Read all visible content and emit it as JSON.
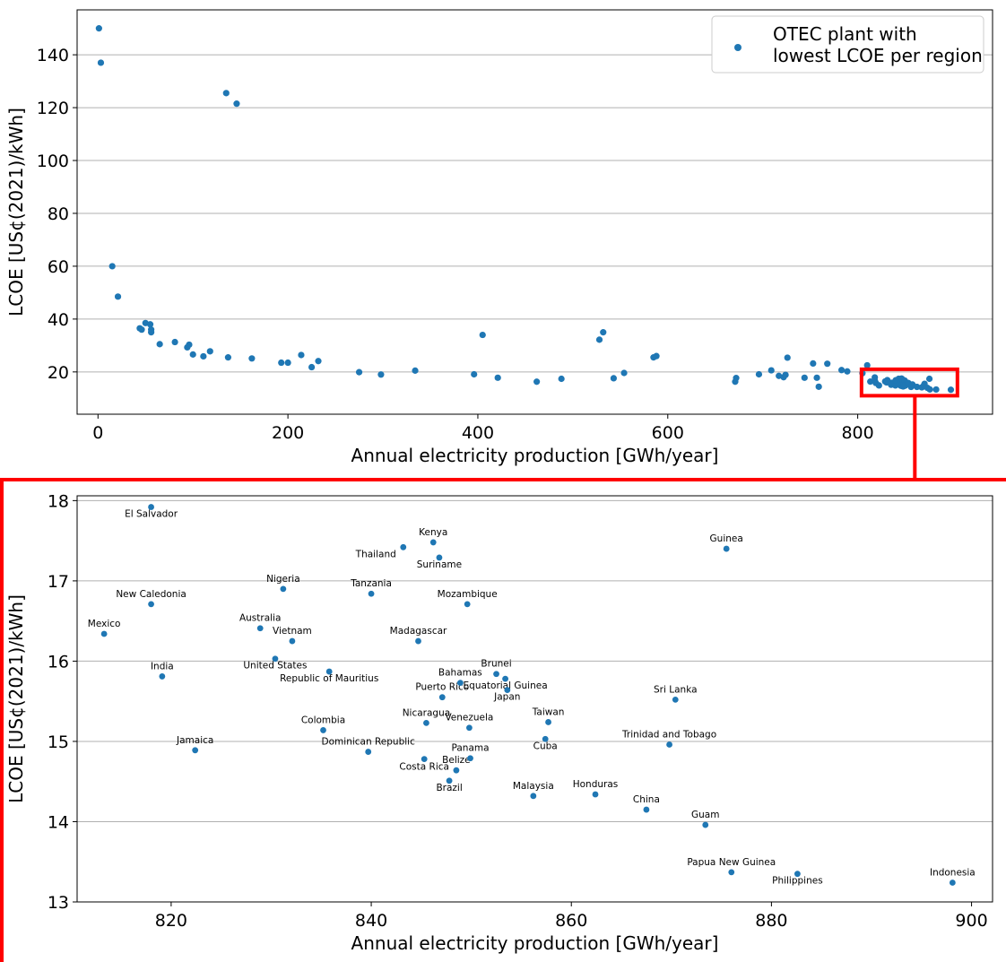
{
  "chart_data": [
    {
      "type": "scatter",
      "xlabel": "Annual electricity production [GWh/year]",
      "ylabel": "LCOE [US¢(2021)/kWh]",
      "xlim": [
        -22,
        942
      ],
      "ylim": [
        4,
        157
      ],
      "xticks": [
        0,
        200,
        400,
        600,
        800
      ],
      "yticks": [
        20,
        40,
        60,
        80,
        100,
        120,
        140
      ],
      "grid": "horizontal",
      "legend": {
        "position": "top-right",
        "label": "OTEC plant with lowest LCOE per region",
        "lines": [
          "OTEC plant with",
          "lowest LCOE per region"
        ]
      },
      "series": [
        {
          "name": "OTEC plant with lowest LCOE per region",
          "color": "#1f77b4",
          "points": [
            [
              1,
              150
            ],
            [
              3,
              137
            ],
            [
              15,
              60
            ],
            [
              21,
              48.5
            ],
            [
              44,
              36.5
            ],
            [
              46,
              36
            ],
            [
              50,
              38.5
            ],
            [
              55,
              38
            ],
            [
              56,
              36
            ],
            [
              56,
              35
            ],
            [
              65,
              30.5
            ],
            [
              81,
              31.3
            ],
            [
              94,
              29.3
            ],
            [
              96,
              30.3
            ],
            [
              100,
              26.6
            ],
            [
              111,
              25.9
            ],
            [
              118,
              27.8
            ],
            [
              135,
              125.5
            ],
            [
              137,
              25.5
            ],
            [
              146,
              121.5
            ],
            [
              162,
              25.1
            ],
            [
              193,
              23.5
            ],
            [
              200,
              23.5
            ],
            [
              214,
              26.4
            ],
            [
              225,
              21.8
            ],
            [
              232,
              24.1
            ],
            [
              275,
              19.9
            ],
            [
              298,
              19
            ],
            [
              334,
              20.5
            ],
            [
              396,
              19.1
            ],
            [
              405,
              34
            ],
            [
              421,
              17.8
            ],
            [
              462,
              16.3
            ],
            [
              488,
              17.4
            ],
            [
              528,
              32.2
            ],
            [
              532,
              35
            ],
            [
              543,
              17.6
            ],
            [
              554,
              19.6
            ],
            [
              585,
              25.5
            ],
            [
              588,
              26
            ],
            [
              671,
              16.3
            ],
            [
              672,
              17.7
            ],
            [
              696,
              19.1
            ],
            [
              709,
              20.6
            ],
            [
              717,
              18.5
            ],
            [
              722,
              18
            ],
            [
              724,
              18.9
            ],
            [
              726,
              25.4
            ],
            [
              744,
              17.8
            ],
            [
              753,
              23.2
            ],
            [
              757,
              17.8
            ],
            [
              759,
              14.4
            ],
            [
              768,
              23.1
            ],
            [
              783,
              20.7
            ],
            [
              789,
              20.2
            ],
            [
              805,
              19.5
            ],
            [
              810,
              22.5
            ],
            [
              813.3,
              16.34
            ],
            [
              818,
              17.92
            ],
            [
              818,
              16.71
            ],
            [
              819.1,
              15.81
            ],
            [
              822.4,
              14.89
            ],
            [
              828.9,
              16.41
            ],
            [
              830.4,
              16.03
            ],
            [
              831.2,
              16.9
            ],
            [
              832.1,
              16.25
            ],
            [
              835.2,
              15.14
            ],
            [
              835.8,
              15.87
            ],
            [
              839.7,
              14.87
            ],
            [
              840,
              16.84
            ],
            [
              843.2,
              17.42
            ],
            [
              844.7,
              16.25
            ],
            [
              845.3,
              14.78
            ],
            [
              845.5,
              15.23
            ],
            [
              846.2,
              17.48
            ],
            [
              846.8,
              17.29
            ],
            [
              847.1,
              15.55
            ],
            [
              847.8,
              14.51
            ],
            [
              848.5,
              14.64
            ],
            [
              848.9,
              15.73
            ],
            [
              849.6,
              16.71
            ],
            [
              849.8,
              15.17
            ],
            [
              849.9,
              14.79
            ],
            [
              852.5,
              15.84
            ],
            [
              853.4,
              15.78
            ],
            [
              853.6,
              15.64
            ],
            [
              856.2,
              14.32
            ],
            [
              857.4,
              15.03
            ],
            [
              857.7,
              15.24
            ],
            [
              862.4,
              14.34
            ],
            [
              867.5,
              14.15
            ],
            [
              869.8,
              14.96
            ],
            [
              870.4,
              15.52
            ],
            [
              873.4,
              13.96
            ],
            [
              875.5,
              17.4
            ],
            [
              876,
              13.37
            ],
            [
              882.6,
              13.35
            ],
            [
              898.1,
              13.24
            ]
          ]
        }
      ],
      "highlight_box": {
        "x": [
          804,
          905
        ],
        "y": [
          11,
          21
        ],
        "color": "#ff0000"
      }
    },
    {
      "type": "scatter",
      "xlabel": "Annual electricity production [GWh/year]",
      "ylabel": "LCOE [US¢(2021)/kWh]",
      "xlim": [
        810.6,
        902.1
      ],
      "ylim": [
        13,
        18.06
      ],
      "xticks": [
        820,
        840,
        860,
        880,
        900
      ],
      "yticks": [
        13,
        14,
        15,
        16,
        17,
        18
      ],
      "grid": "horizontal",
      "series": [
        {
          "color": "#1f77b4",
          "points": [
            {
              "label": "Mexico",
              "x": 813.3,
              "y": 16.34,
              "anchor": "middle",
              "dy": -8
            },
            {
              "label": "El Salvador",
              "x": 818,
              "y": 17.92,
              "anchor": "middle",
              "dy": 11
            },
            {
              "label": "New Caledonia",
              "x": 818,
              "y": 16.71,
              "anchor": "middle",
              "dy": -8
            },
            {
              "label": "India",
              "x": 819.1,
              "y": 15.81,
              "anchor": "middle",
              "dy": -8
            },
            {
              "label": "Jamaica",
              "x": 822.4,
              "y": 14.89,
              "anchor": "middle",
              "dy": -8
            },
            {
              "label": "Australia",
              "x": 828.9,
              "y": 16.41,
              "anchor": "middle",
              "dy": -8
            },
            {
              "label": "United States",
              "x": 830.4,
              "y": 16.03,
              "anchor": "middle",
              "dy": 11
            },
            {
              "label": "Nigeria",
              "x": 831.2,
              "y": 16.9,
              "anchor": "middle",
              "dy": -8
            },
            {
              "label": "Vietnam",
              "x": 832.1,
              "y": 16.25,
              "anchor": "middle",
              "dy": -8
            },
            {
              "label": "Colombia",
              "x": 835.2,
              "y": 15.14,
              "anchor": "middle",
              "dy": -8
            },
            {
              "label": "Republic of Mauritius",
              "x": 835.8,
              "y": 15.87,
              "anchor": "middle",
              "dy": 11
            },
            {
              "label": "Dominican Republic",
              "x": 839.7,
              "y": 14.87,
              "anchor": "middle",
              "dy": -8
            },
            {
              "label": "Tanzania",
              "x": 840,
              "y": 16.84,
              "anchor": "middle",
              "dy": -8
            },
            {
              "label": "Thailand",
              "x": 843.2,
              "y": 17.42,
              "anchor": "end",
              "dy": 11
            },
            {
              "label": "Madagascar",
              "x": 844.7,
              "y": 16.25,
              "anchor": "middle",
              "dy": -8
            },
            {
              "label": "Costa Rica",
              "x": 845.3,
              "y": 14.78,
              "anchor": "middle",
              "dy": 12
            },
            {
              "label": "Nicaragua",
              "x": 845.5,
              "y": 15.23,
              "anchor": "middle",
              "dy": -8
            },
            {
              "label": "Kenya",
              "x": 846.2,
              "y": 17.48,
              "anchor": "middle",
              "dy": -8
            },
            {
              "label": "Suriname",
              "x": 846.8,
              "y": 17.29,
              "anchor": "middle",
              "dy": 11
            },
            {
              "label": "Puerto Rico",
              "x": 847.1,
              "y": 15.55,
              "anchor": "middle",
              "dy": -8
            },
            {
              "label": "Brazil",
              "x": 847.8,
              "y": 14.51,
              "anchor": "middle",
              "dy": 11
            },
            {
              "label": "Belize",
              "x": 848.5,
              "y": 14.64,
              "anchor": "middle",
              "dy": -8
            },
            {
              "label": "Bahamas",
              "x": 848.9,
              "y": 15.73,
              "anchor": "middle",
              "dy": -8
            },
            {
              "label": "Mozambique",
              "x": 849.6,
              "y": 16.71,
              "anchor": "middle",
              "dy": -8
            },
            {
              "label": "Venezuela",
              "x": 849.8,
              "y": 15.17,
              "anchor": "middle",
              "dy": -8
            },
            {
              "label": "Panama",
              "x": 849.9,
              "y": 14.79,
              "anchor": "middle",
              "dy": -8
            },
            {
              "label": "Brunei",
              "x": 852.5,
              "y": 15.84,
              "anchor": "middle",
              "dy": -8
            },
            {
              "label": "Equatorial Guinea",
              "x": 853.4,
              "y": 15.78,
              "anchor": "middle",
              "dy": 11
            },
            {
              "label": "Japan",
              "x": 853.6,
              "y": 15.64,
              "anchor": "middle",
              "dy": 11
            },
            {
              "label": "Malaysia",
              "x": 856.2,
              "y": 14.32,
              "anchor": "middle",
              "dy": -8
            },
            {
              "label": "Cuba",
              "x": 857.4,
              "y": 15.03,
              "anchor": "middle",
              "dy": 11
            },
            {
              "label": "Taiwan",
              "x": 857.7,
              "y": 15.24,
              "anchor": "middle",
              "dy": -8
            },
            {
              "label": "Honduras",
              "x": 862.4,
              "y": 14.34,
              "anchor": "middle",
              "dy": -8
            },
            {
              "label": "China",
              "x": 867.5,
              "y": 14.15,
              "anchor": "middle",
              "dy": -8
            },
            {
              "label": "Trinidad and Tobago",
              "x": 869.8,
              "y": 14.96,
              "anchor": "middle",
              "dy": -8
            },
            {
              "label": "Sri Lanka",
              "x": 870.4,
              "y": 15.52,
              "anchor": "middle",
              "dy": -8
            },
            {
              "label": "Guam",
              "x": 873.4,
              "y": 13.96,
              "anchor": "middle",
              "dy": -8
            },
            {
              "label": "Guinea",
              "x": 875.5,
              "y": 17.4,
              "anchor": "middle",
              "dy": -8
            },
            {
              "label": "Papua New Guinea",
              "x": 876,
              "y": 13.37,
              "anchor": "middle",
              "dy": -8
            },
            {
              "label": "Philippines",
              "x": 882.6,
              "y": 13.35,
              "anchor": "middle",
              "dy": 11
            },
            {
              "label": "Indonesia",
              "x": 898.1,
              "y": 13.24,
              "anchor": "middle",
              "dy": -8
            }
          ]
        }
      ]
    }
  ]
}
